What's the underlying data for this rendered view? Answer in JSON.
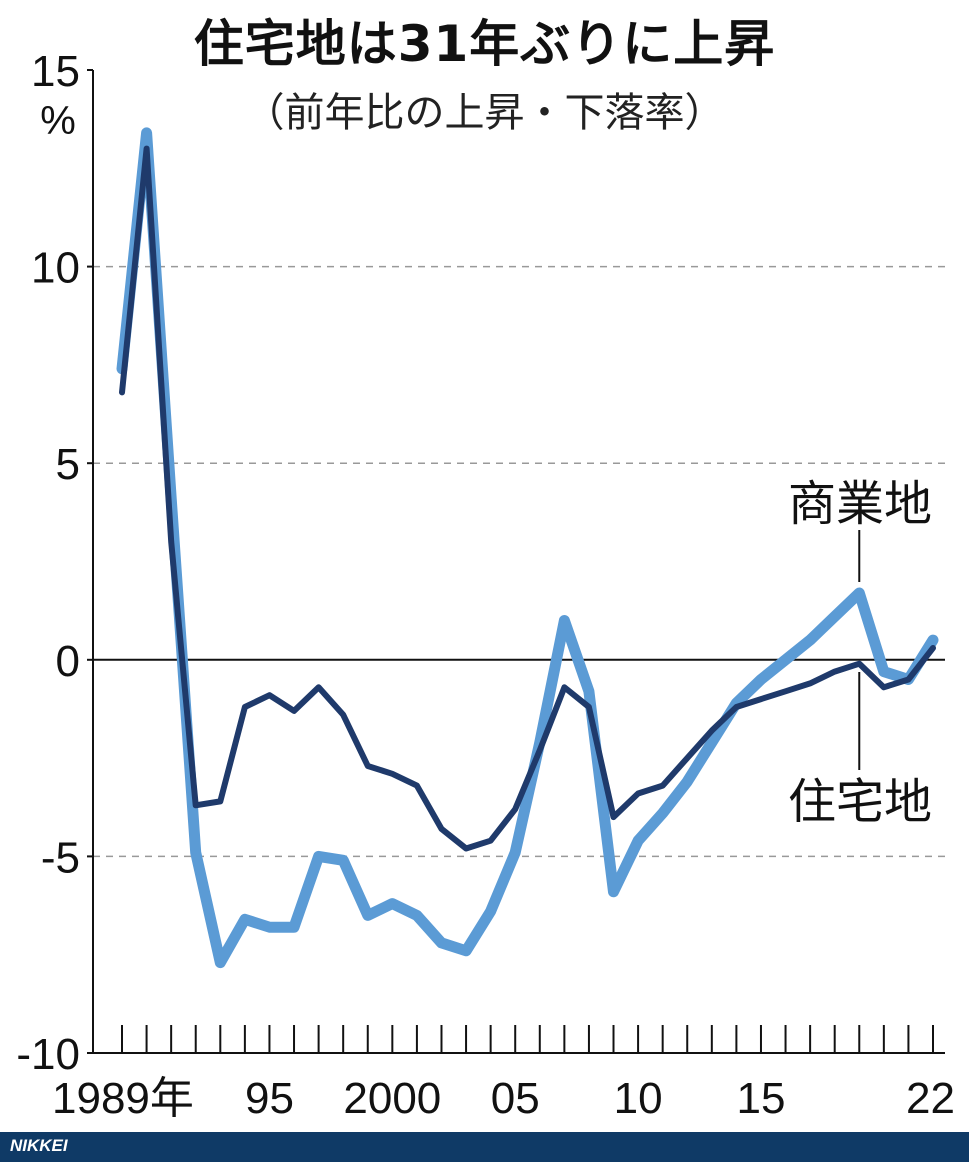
{
  "chart_data": {
    "type": "line",
    "title": "住宅地は31年ぶりに上昇",
    "subtitle": "（前年比の上昇・下落率）",
    "ylabel": "%",
    "ylim": [
      -10,
      15
    ],
    "yticks": [
      15,
      10,
      5,
      0,
      -5,
      -10
    ],
    "ytick_labels": [
      "15",
      "10",
      "5",
      "0",
      "-5",
      "-10"
    ],
    "xlim": [
      1989,
      2022
    ],
    "xticks": [
      1989,
      1995,
      2000,
      2005,
      2010,
      2015,
      2022
    ],
    "xtick_labels": [
      "1989年",
      "95",
      "2000",
      "05",
      "10",
      "15",
      "22"
    ],
    "grid": "dashed horizontal at 10, 5, -5",
    "x": [
      1989,
      1990,
      1991,
      1992,
      1993,
      1994,
      1995,
      1996,
      1997,
      1998,
      1999,
      2000,
      2001,
      2002,
      2003,
      2004,
      2005,
      2006,
      2007,
      2008,
      2009,
      2010,
      2011,
      2012,
      2013,
      2014,
      2015,
      2016,
      2017,
      2018,
      2019,
      2020,
      2021,
      2022
    ],
    "series": [
      {
        "name": "商業地",
        "color": "#5b9bd5",
        "values": [
          7.4,
          13.4,
          4.1,
          -4.9,
          -7.7,
          -6.6,
          -6.8,
          -6.8,
          -5.0,
          -5.1,
          -6.5,
          -6.2,
          -6.5,
          -7.2,
          -7.4,
          -6.4,
          -4.9,
          -2.1,
          1.0,
          -0.8,
          -5.9,
          -4.6,
          -3.9,
          -3.1,
          -2.1,
          -1.1,
          -0.5,
          0.0,
          0.5,
          1.1,
          1.7,
          -0.3,
          -0.5,
          0.5
        ]
      },
      {
        "name": "住宅地",
        "color": "#1f3a6b",
        "values": [
          6.8,
          13.0,
          3.0,
          -3.7,
          -3.6,
          -1.2,
          -0.9,
          -1.3,
          -0.7,
          -1.4,
          -2.7,
          -2.9,
          -3.2,
          -4.3,
          -4.8,
          -4.6,
          -3.8,
          -2.3,
          -0.7,
          -1.2,
          -4.0,
          -3.4,
          -3.2,
          -2.5,
          -1.8,
          -1.2,
          -1.0,
          -0.8,
          -0.6,
          -0.3,
          -0.1,
          -0.7,
          -0.5,
          0.3
        ]
      }
    ],
    "annotations": [
      "商業地",
      "住宅地"
    ]
  },
  "footer": {
    "brand": "NIKKEI"
  }
}
